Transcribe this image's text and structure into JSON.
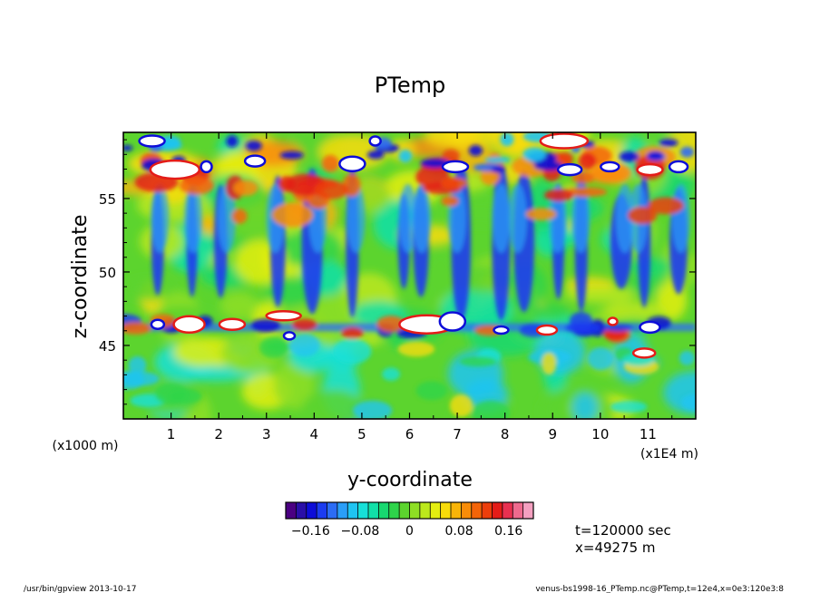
{
  "chart_data": {
    "type": "heatmap",
    "title": "PTemp",
    "xlabel": "y-coordinate",
    "ylabel": "z-coordinate",
    "x_unit": "(x1E4 m)",
    "y_unit": "(x1000 m)",
    "xlim": [
      0,
      12
    ],
    "ylim": [
      40,
      59.5
    ],
    "x_ticks": [
      "1",
      "2",
      "3",
      "4",
      "5",
      "6",
      "7",
      "8",
      "9",
      "10",
      "11"
    ],
    "y_ticks": [
      "45",
      "50",
      "55"
    ],
    "colorbar": {
      "tick_labels": [
        "-0.16",
        "-0.08",
        "0",
        "0.08",
        "0.16"
      ],
      "tick_values": [
        -0.16,
        -0.08,
        0,
        0.08,
        0.16
      ],
      "range": [
        -0.2,
        0.2
      ],
      "colors": [
        "#4b0082",
        "#2a0fa8",
        "#0d0dd8",
        "#1c3cf0",
        "#2c6cf5",
        "#2a9ef8",
        "#1fc4f2",
        "#17e0d8",
        "#12e0a8",
        "#18d870",
        "#2ed44a",
        "#5cd42e",
        "#8ede24",
        "#bce81c",
        "#e4ee10",
        "#f8dc0a",
        "#f8b408",
        "#f88c08",
        "#f46408",
        "#ec3e0c",
        "#e41c18",
        "#e83050",
        "#ee6a8e",
        "#f4a0c0"
      ]
    },
    "annotations": [
      "t=120000 sec",
      "x=49275 m"
    ]
  },
  "footer": {
    "left": "/usr/bin/gpview  2013-10-17",
    "right": "venus-bs1998-16_PTemp.nc@PTemp,t=12e4,x=0e3:120e3:8"
  }
}
